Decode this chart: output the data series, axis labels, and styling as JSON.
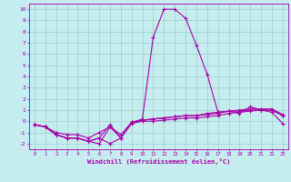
{
  "xlabel": "Windchill (Refroidissement éolien,°C)",
  "xlim": [
    -0.5,
    23.5
  ],
  "ylim": [
    -2.5,
    10.5
  ],
  "xticks": [
    0,
    1,
    2,
    3,
    4,
    5,
    6,
    7,
    8,
    9,
    10,
    11,
    12,
    13,
    14,
    15,
    16,
    17,
    18,
    19,
    20,
    21,
    22,
    23
  ],
  "yticks": [
    -2,
    -1,
    0,
    1,
    2,
    3,
    4,
    5,
    6,
    7,
    8,
    9,
    10
  ],
  "bg_color": "#c5ecee",
  "line_color": "#aa00aa",
  "grid_color": "#a0cccc",
  "curves": [
    [
      -0.3,
      -0.5,
      -1.2,
      -1.5,
      -1.5,
      -1.8,
      -1.5,
      -0.3,
      -1.5,
      -0.1,
      0.2,
      7.5,
      10.0,
      10.0,
      9.2,
      6.8,
      4.2,
      0.8,
      0.9,
      0.7,
      1.3,
      1.0,
      0.8,
      -0.2
    ],
    [
      -0.3,
      -0.5,
      -1.2,
      -1.5,
      -1.5,
      -1.8,
      -1.5,
      -2.0,
      -1.5,
      -0.2,
      0.0,
      0.0,
      0.1,
      0.2,
      0.3,
      0.3,
      0.4,
      0.5,
      0.7,
      0.8,
      0.9,
      1.0,
      1.0,
      0.5
    ],
    [
      -0.3,
      -0.5,
      -1.0,
      -1.2,
      -1.2,
      -1.5,
      -1.0,
      -0.5,
      -1.2,
      -0.1,
      0.1,
      0.2,
      0.3,
      0.4,
      0.5,
      0.5,
      0.6,
      0.7,
      0.9,
      1.0,
      1.1,
      1.1,
      1.1,
      0.6
    ],
    [
      -0.3,
      -0.5,
      -1.2,
      -1.5,
      -1.5,
      -1.8,
      -2.0,
      -0.5,
      -1.5,
      -0.1,
      0.1,
      0.2,
      0.3,
      0.4,
      0.5,
      0.5,
      0.7,
      0.8,
      0.9,
      0.9,
      1.0,
      1.0,
      1.0,
      0.5
    ]
  ]
}
